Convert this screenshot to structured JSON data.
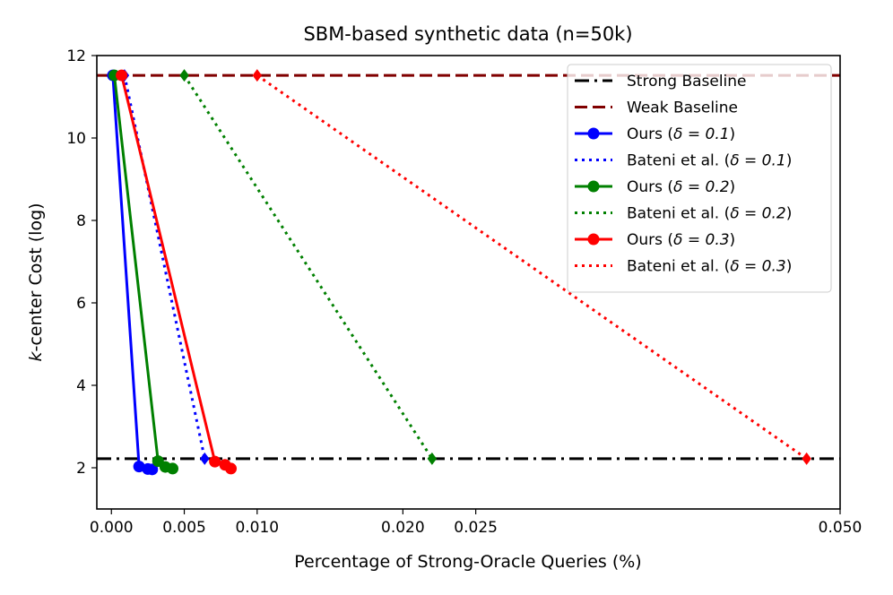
{
  "chart_data": {
    "type": "line",
    "title": "SBM-based synthetic data (n=50k)",
    "xlabel": "Percentage of Strong-Oracle Queries (%)",
    "ylabel_italic": "k",
    "ylabel_rest": "-center Cost (log)",
    "xlim": [
      -0.001,
      0.05
    ],
    "ylim": [
      1.0,
      12.0
    ],
    "xticks": [
      0.0,
      0.005,
      0.01,
      0.02,
      0.025,
      0.05
    ],
    "xtick_labels": [
      "0.000",
      "0.005",
      "0.010",
      "0.020",
      "0.025",
      "0.050"
    ],
    "yticks": [
      2,
      4,
      6,
      8,
      10,
      12
    ],
    "ytick_labels": [
      "2",
      "4",
      "6",
      "8",
      "10",
      "12"
    ],
    "legend_position": "top-right",
    "baselines": [
      {
        "name": "Strong Baseline",
        "y": 2.22,
        "color": "#000000",
        "style": "dashdot"
      },
      {
        "name": "Weak Baseline",
        "y": 11.52,
        "color": "#800000",
        "style": "dashed"
      }
    ],
    "series": [
      {
        "name_text": "Ours (",
        "name_math": "δ = 0.1",
        "name_end": ")",
        "color": "#0000ff",
        "style": "solid",
        "marker": "circle",
        "x": [
          0.0001,
          0.0019,
          0.0025,
          0.0028
        ],
        "y": [
          11.52,
          2.03,
          1.97,
          1.96
        ]
      },
      {
        "name_text": "Bateni et al. (",
        "name_math": "δ = 0.1",
        "name_end": ")",
        "color": "#0000ff",
        "style": "dotted",
        "marker": "diamond",
        "x": [
          0.0009,
          0.0064
        ],
        "y": [
          11.52,
          2.22
        ]
      },
      {
        "name_text": "Ours (",
        "name_math": "δ = 0.2",
        "name_end": ")",
        "color": "#008000",
        "style": "solid",
        "marker": "circle",
        "x": [
          0.0002,
          0.0032,
          0.0037,
          0.0042
        ],
        "y": [
          11.52,
          2.16,
          2.02,
          1.98
        ]
      },
      {
        "name_text": "Bateni et al. (",
        "name_math": "δ = 0.2",
        "name_end": ")",
        "color": "#008000",
        "style": "dotted",
        "marker": "diamond",
        "x": [
          0.005,
          0.022
        ],
        "y": [
          11.52,
          2.22
        ]
      },
      {
        "name_text": "Ours (",
        "name_math": "δ = 0.3",
        "name_end": ")",
        "color": "#ff0000",
        "style": "solid",
        "marker": "circle",
        "x": [
          0.0007,
          0.0071,
          0.0078,
          0.0082
        ],
        "y": [
          11.52,
          2.15,
          2.07,
          1.98
        ]
      },
      {
        "name_text": "Bateni et al. (",
        "name_math": "δ = 0.3",
        "name_end": ")",
        "color": "#ff0000",
        "style": "dotted",
        "marker": "diamond",
        "x": [
          0.01,
          0.0477
        ],
        "y": [
          11.52,
          2.22
        ]
      }
    ]
  }
}
